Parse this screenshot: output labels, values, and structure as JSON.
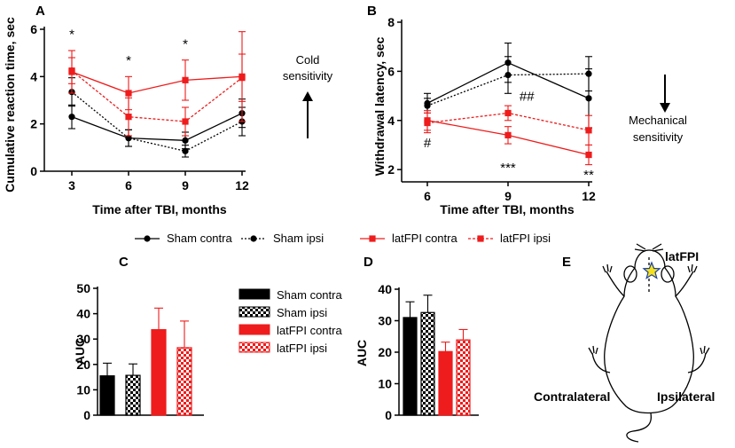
{
  "chart_data": [
    {
      "panel": "A",
      "type": "line",
      "xlabel": "Time after TBI, months",
      "ylabel": "Cumulative reaction time, sec",
      "x": [
        3,
        6,
        9,
        12
      ],
      "xticks": [
        "3",
        "6",
        "9",
        "12"
      ],
      "yticks": [
        "0",
        "2",
        "4",
        "6"
      ],
      "ylim": [
        0,
        6
      ],
      "series": [
        {
          "name": "Sham contra",
          "values": [
            2.3,
            1.4,
            1.3,
            2.45
          ],
          "err": [
            0.5,
            0.35,
            0.35,
            0.6
          ]
        },
        {
          "name": "Sham ipsi",
          "values": [
            3.35,
            1.4,
            0.85,
            2.1
          ],
          "err": [
            0.6,
            0.35,
            0.25,
            0.6
          ]
        },
        {
          "name": "latFPI contra",
          "values": [
            4.2,
            3.3,
            3.85,
            4.0
          ],
          "err": [
            0.9,
            0.7,
            0.85,
            1.9
          ]
        },
        {
          "name": "latFPI ipsi",
          "values": [
            4.25,
            2.3,
            2.1,
            3.95
          ],
          "err": [
            0.55,
            0.8,
            0.6,
            1.0
          ]
        }
      ],
      "annotations": [
        {
          "text": "*",
          "x": 3,
          "y": 5.6
        },
        {
          "text": "*",
          "x": 6,
          "y": 4.5
        },
        {
          "text": "*",
          "x": 9,
          "y": 5.2
        }
      ]
    },
    {
      "panel": "B",
      "type": "line",
      "xlabel": "Time after TBI, months",
      "ylabel": "Withdrawal latency, sec",
      "x": [
        6,
        9,
        12
      ],
      "xticks": [
        "6",
        "9",
        "12"
      ],
      "yticks": [
        "2",
        "4",
        "6",
        "8"
      ],
      "ylim": [
        1.5,
        8
      ],
      "series": [
        {
          "name": "Sham contra",
          "values": [
            4.7,
            6.35,
            4.9
          ],
          "err": [
            0.4,
            0.8,
            1.2
          ]
        },
        {
          "name": "Sham ipsi",
          "values": [
            4.6,
            5.85,
            5.9
          ],
          "err": [
            0.3,
            0.75,
            0.7
          ]
        },
        {
          "name": "latFPI contra",
          "values": [
            4.0,
            3.4,
            2.6
          ],
          "err": [
            0.4,
            0.35,
            0.4
          ]
        },
        {
          "name": "latFPI ipsi",
          "values": [
            3.9,
            4.3,
            3.6
          ],
          "err": [
            0.4,
            0.3,
            0.6
          ]
        }
      ],
      "annotations": [
        {
          "text": "#",
          "x": 6,
          "y": 2.9
        },
        {
          "text": "##",
          "x": 9.7,
          "y": 4.8
        },
        {
          "text": "***",
          "x": 9,
          "y": 1.9
        },
        {
          "text": "**",
          "x": 12,
          "y": 1.6
        }
      ]
    },
    {
      "panel": "C",
      "type": "bar",
      "ylabel": "AUC",
      "categories": [
        "Sham contra",
        "Sham ipsi",
        "latFPI contra",
        "latFPI ipsi"
      ],
      "values": [
        15.5,
        15.7,
        33.7,
        26.6
      ],
      "err": [
        5.0,
        4.5,
        8.5,
        10.5
      ],
      "yticks": [
        "0",
        "10",
        "20",
        "30",
        "40",
        "50"
      ],
      "ylim": [
        0,
        50
      ]
    },
    {
      "panel": "D",
      "type": "bar",
      "ylabel": "AUC",
      "categories": [
        "Sham contra",
        "Sham ipsi",
        "latFPI contra",
        "latFPI ipsi"
      ],
      "values": [
        31.0,
        32.6,
        20.2,
        23.9
      ],
      "err": [
        5.0,
        5.5,
        3.0,
        3.3
      ],
      "yticks": [
        "0",
        "10",
        "20",
        "30",
        "40"
      ],
      "ylim": [
        0,
        40
      ]
    }
  ],
  "legend": {
    "items": [
      "Sham contra",
      "Sham ipsi",
      "latFPI contra",
      "latFPI ipsi"
    ]
  },
  "bar_legend": {
    "items": [
      "Sham contra",
      "Sham ipsi",
      "latFPI contra",
      "latFPI ipsi"
    ]
  },
  "labels": {
    "panel_a": "A",
    "panel_b": "B",
    "panel_c": "C",
    "panel_d": "D",
    "panel_e": "E",
    "cold_line1": "Cold",
    "cold_line2": "sensitivity",
    "mech_line1": "Mechanical",
    "mech_line2": "sensitivity",
    "rat_lesion": "latFPI",
    "contralateral": "Contralateral",
    "ipsilateral": "Ipsilateral"
  },
  "colors": {
    "sham": "#000000",
    "latfpi": "#ee1c1c"
  }
}
